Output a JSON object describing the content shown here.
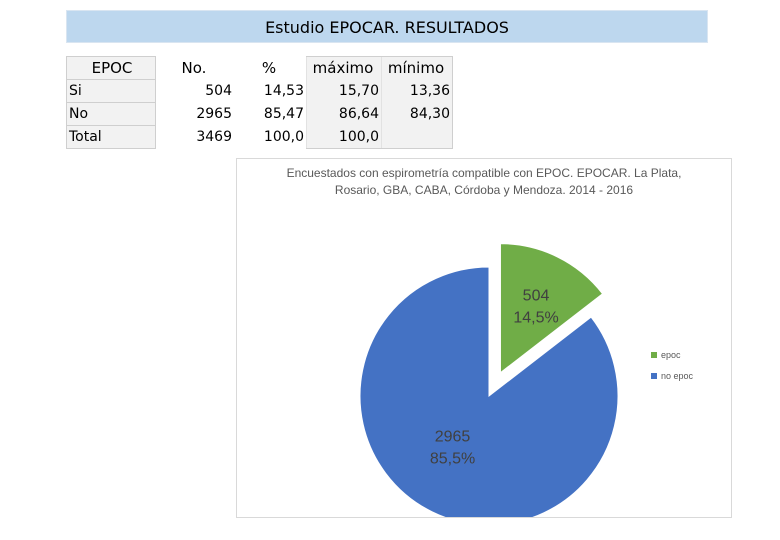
{
  "header": {
    "title": "Estudio EPOCAR. RESULTADOS"
  },
  "table": {
    "columns": [
      "EPOC",
      "No.",
      "%",
      "máximo",
      "mínimo"
    ],
    "rows": [
      {
        "label": "Si",
        "n": "504",
        "pct": "14,53",
        "max": "15,70",
        "min": "13,36"
      },
      {
        "label": "No",
        "n": "2965",
        "pct": "85,47",
        "max": "86,64",
        "min": "84,30"
      },
      {
        "label": "Total",
        "n": "3469",
        "pct": "100,0",
        "max": "100,0",
        "min": ""
      }
    ]
  },
  "chart_data": {
    "type": "pie",
    "title_line1": "Encuestados con espirometría compatible con EPOC. EPOCAR. La Plata,",
    "title_line2": "Rosario, GBA, CABA, Córdoba y Mendoza. 2014 - 2016",
    "slices": [
      {
        "name": "epoc",
        "value": 504,
        "label_value": "504",
        "label_pct": "14,5%",
        "color": "#70ad47",
        "exploded": true
      },
      {
        "name": "no epoc",
        "value": 2965,
        "label_value": "2965",
        "label_pct": "85,5%",
        "color": "#4472c4",
        "exploded": false
      }
    ],
    "legend_position": "right"
  }
}
